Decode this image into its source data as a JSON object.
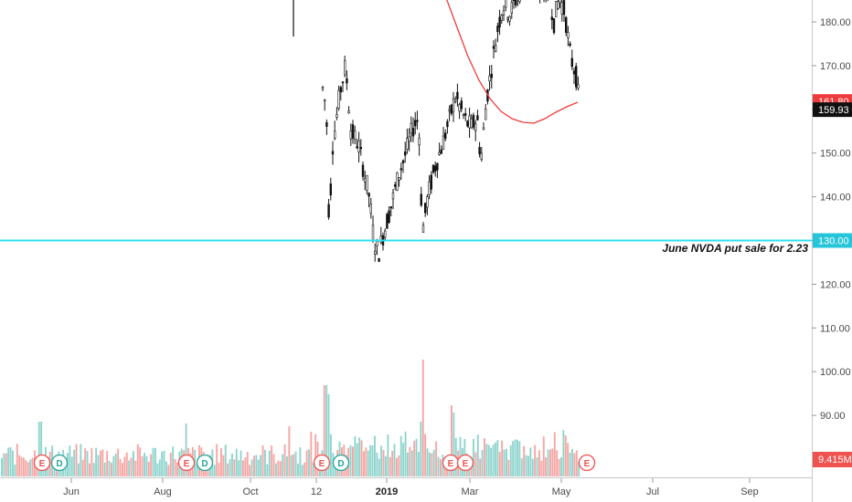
{
  "chart_data": {
    "type": "candlestick",
    "symbol": "",
    "y_axis": {
      "ticks": [
        90,
        100,
        110,
        120,
        130,
        140,
        150,
        160,
        170,
        180
      ],
      "tick_labels": [
        "90.00",
        "100.00",
        "110.00",
        "120.00",
        "130.00",
        "140.00",
        "150.00",
        "160.00",
        "170.00",
        "180.00"
      ],
      "range": [
        80.5,
        188.5
      ]
    },
    "x_axis": {
      "labels": [
        {
          "text": "Jun",
          "x": 78,
          "bold": false
        },
        {
          "text": "Aug",
          "x": 178,
          "bold": false
        },
        {
          "text": "Oct",
          "x": 274,
          "bold": false
        },
        {
          "text": "12",
          "x": 346,
          "bold": false
        },
        {
          "text": "2019",
          "x": 423,
          "bold": true
        },
        {
          "text": "Mar",
          "x": 514,
          "bold": false
        },
        {
          "text": "May",
          "x": 614,
          "bold": false
        },
        {
          "text": "Jul",
          "x": 714,
          "bold": false
        },
        {
          "text": "Sep",
          "x": 820,
          "bold": false
        }
      ]
    },
    "price_tags": [
      {
        "label": "161.80",
        "value": 161.8,
        "color": "#ef3b3b"
      },
      {
        "label": "159.93",
        "value": 159.93,
        "color": "#111111"
      },
      {
        "label": "130.00",
        "value": 130.0,
        "color": "#26c6da"
      }
    ],
    "horizontal_line": {
      "value": 130.0,
      "color": "#2fe0f0"
    },
    "annotation": {
      "text": "June NVDA put sale for 2.23"
    },
    "volume": {
      "last_label": "9.415M",
      "tag_color": "#ef5350"
    },
    "moving_average": {
      "color": "#ef3b3b"
    },
    "events": [
      {
        "type": "E",
        "x": 46
      },
      {
        "type": "D",
        "x": 65
      },
      {
        "type": "E",
        "x": 204
      },
      {
        "type": "D",
        "x": 224
      },
      {
        "type": "E",
        "x": 352
      },
      {
        "type": "D",
        "x": 373
      },
      {
        "type": "E",
        "x": 493
      },
      {
        "type": "E",
        "x": 509
      },
      {
        "type": "E",
        "x": 642
      }
    ],
    "colors": {
      "up": "#26a69a",
      "down": "#ef5350",
      "candle": "#111111"
    }
  }
}
